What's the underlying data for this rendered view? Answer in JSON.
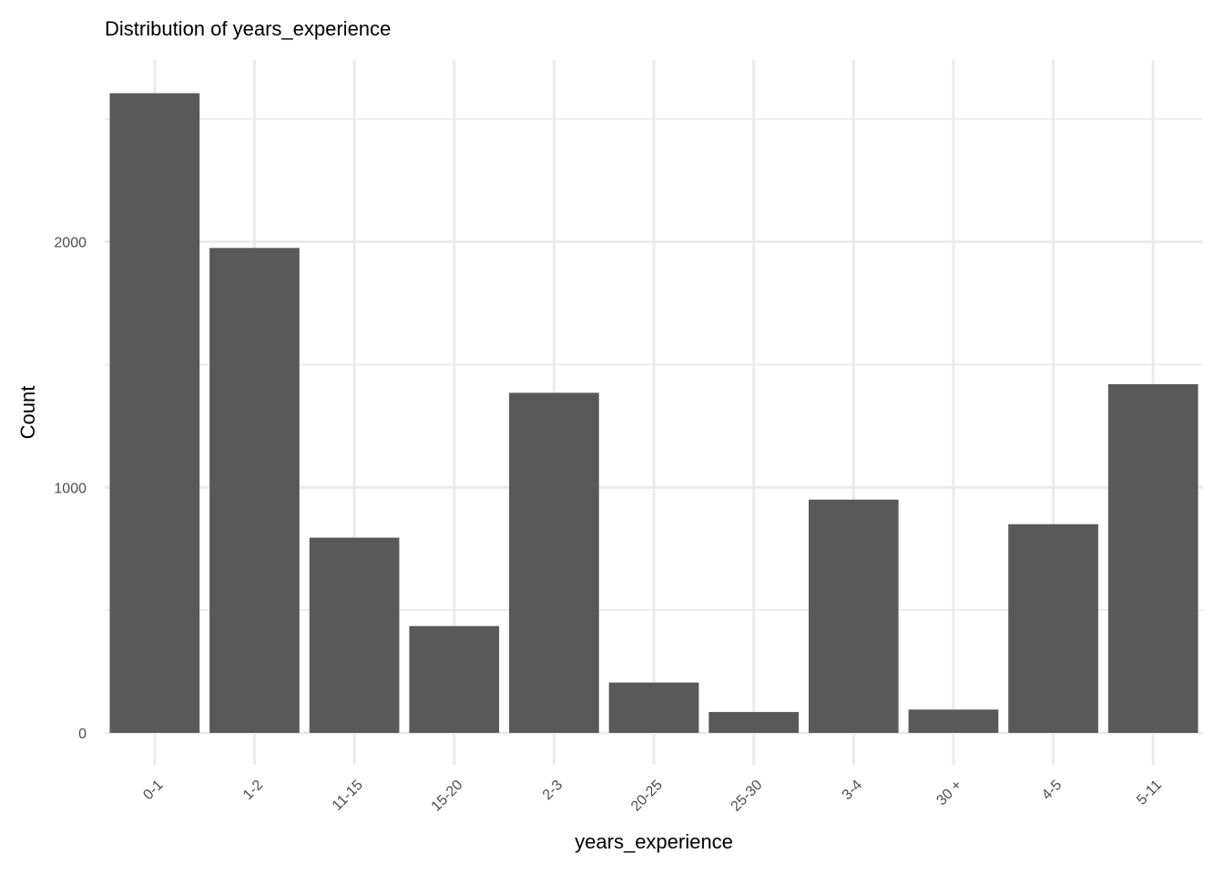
{
  "chart_data": {
    "type": "bar",
    "title": "Distribution of years_experience",
    "xlabel": "years_experience",
    "ylabel": "Count",
    "categories": [
      "0-1",
      "1-2",
      "11-15",
      "15-20",
      "2-3",
      "20-25",
      "25-30",
      "3-4",
      "30 +",
      "4-5",
      "5-11"
    ],
    "values": [
      2605,
      1975,
      795,
      435,
      1385,
      205,
      85,
      950,
      95,
      850,
      1420
    ],
    "ylim": [
      0,
      2740
    ],
    "yticks": [
      0,
      1000,
      2000
    ],
    "ytick_labels": [
      "0",
      "1000",
      "2000"
    ],
    "grid": true,
    "bar_color": "#595959",
    "grid_color": "#ebebeb"
  }
}
